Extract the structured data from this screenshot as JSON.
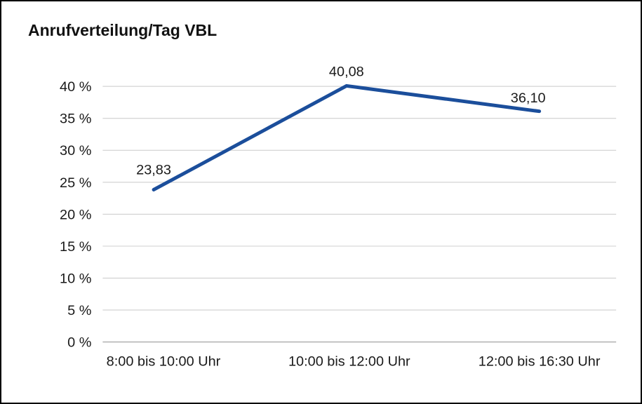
{
  "chart_data": {
    "type": "line",
    "title": "Anrufverteilung/Tag VBL",
    "categories": [
      "8:00 bis 10:00 Uhr",
      "10:00 bis 12:00 Uhr",
      "12:00 bis 16:30 Uhr"
    ],
    "values": [
      23.83,
      40.08,
      36.1
    ],
    "value_labels": [
      "23,83",
      "40,08",
      "36,10"
    ],
    "xlabel": "",
    "ylabel": "",
    "ylim": [
      0,
      40
    ],
    "ytick_step": 5,
    "ytick_labels": [
      "0 %",
      "5 %",
      "10 %",
      "15 %",
      "20 %",
      "25 %",
      "30 %",
      "35 %",
      "40 %"
    ],
    "grid": true,
    "legend": "none",
    "line_color": "#1b4e9b",
    "grid_color": "#c9c9c9",
    "baseline_color": "#8f8f8f",
    "text_color": "#1a1a1a"
  }
}
